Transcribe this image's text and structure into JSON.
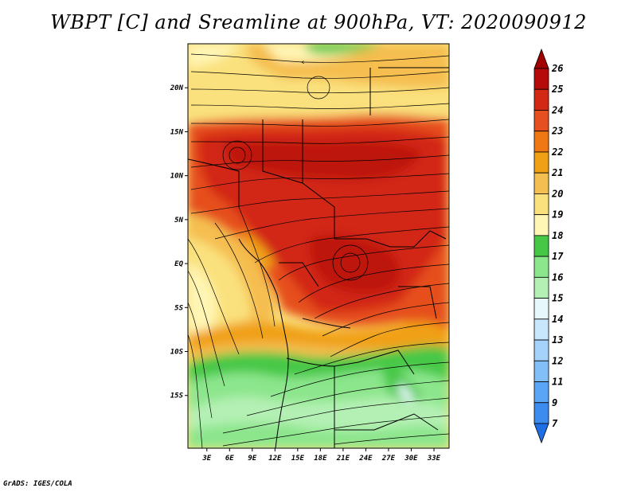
{
  "title": "WBPT [C] and Sreamline at 900hPa, VT: 2020090912",
  "credit": "GrADS: IGES/COLA",
  "map": {
    "lat_range": [
      -21,
      25
    ],
    "lon_range": [
      0.5,
      35
    ],
    "lat_ticks": [
      {
        "value": 20,
        "label": "20N"
      },
      {
        "value": 15,
        "label": "15N"
      },
      {
        "value": 10,
        "label": "10N"
      },
      {
        "value": 5,
        "label": "5N"
      },
      {
        "value": 0,
        "label": "EQ"
      },
      {
        "value": -5,
        "label": "5S"
      },
      {
        "value": -10,
        "label": "10S"
      },
      {
        "value": -15,
        "label": "15S"
      }
    ],
    "lon_ticks": [
      {
        "value": 3,
        "label": "3E"
      },
      {
        "value": 6,
        "label": "6E"
      },
      {
        "value": 9,
        "label": "9E"
      },
      {
        "value": 12,
        "label": "12E"
      },
      {
        "value": 15,
        "label": "15E"
      },
      {
        "value": 18,
        "label": "18E"
      },
      {
        "value": 21,
        "label": "21E"
      },
      {
        "value": 24,
        "label": "24E"
      },
      {
        "value": 27,
        "label": "27E"
      },
      {
        "value": 30,
        "label": "30E"
      },
      {
        "value": 33,
        "label": "33E"
      }
    ]
  },
  "colorbar": {
    "levels": [
      "7",
      "9",
      "11",
      "12",
      "13",
      "14",
      "15",
      "16",
      "17",
      "18",
      "19",
      "20",
      "21",
      "22",
      "23",
      "24",
      "25",
      "26"
    ],
    "colors": [
      "#1e6fe6",
      "#3c8cf0",
      "#5aa5f5",
      "#82bef8",
      "#a5d2fa",
      "#c8e6fc",
      "#e6f8fa",
      "#b4f0b4",
      "#8ce68c",
      "#46c846",
      "#fff5b4",
      "#fae17d",
      "#f5be50",
      "#f0a014",
      "#f07814",
      "#e6501e",
      "#d22814",
      "#b40a0a",
      "#a00000"
    ]
  },
  "colors": {
    "green": "#46c846",
    "light_green": "#8ce68c",
    "pale_green": "#b4f0b4",
    "pale_yellow": "#fff5b4",
    "yellow": "#fae17d",
    "light_orange": "#f5be50",
    "orange": "#f0a014",
    "orange_red": "#f07814",
    "red_orange": "#e6501e",
    "red": "#d22814",
    "dark_red": "#b40a0a"
  }
}
